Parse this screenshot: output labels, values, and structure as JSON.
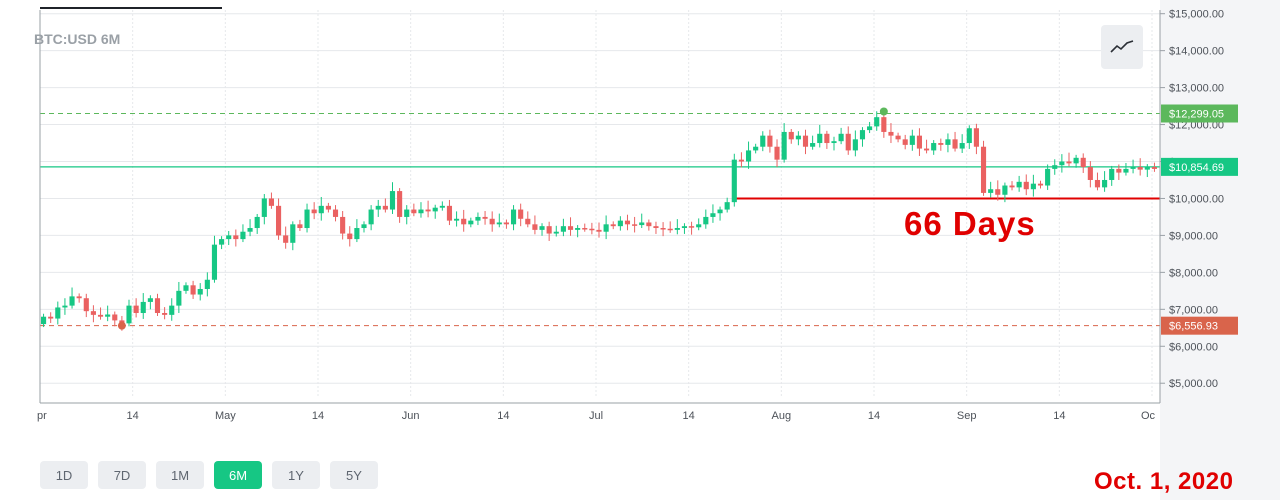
{
  "header": {
    "symbol_title": "BTC:USD 6M"
  },
  "toolbar": {
    "chart_type_icon": "line-chart-icon"
  },
  "range_buttons": [
    {
      "label": "1D",
      "active": false
    },
    {
      "label": "7D",
      "active": false
    },
    {
      "label": "1M",
      "active": false
    },
    {
      "label": "6M",
      "active": true
    },
    {
      "label": "1Y",
      "active": false
    },
    {
      "label": "5Y",
      "active": false
    }
  ],
  "annotations": {
    "days": "66 Days",
    "date": "Oct. 1, 2020"
  },
  "colors": {
    "up": "#16c784",
    "down": "#ea6161",
    "support_line": "#e00000",
    "current_tag": "#16c784",
    "high_tag": "#5cb85c",
    "low_tag": "#d9644b"
  },
  "chart_data": {
    "type": "candlestick",
    "title": "BTC:USD 6M",
    "y_ticks": [
      "$5,000.00",
      "$6,000.00",
      "$7,000.00",
      "$8,000.00",
      "$9,000.00",
      "$10,000.00",
      "$11,000.00",
      "$12,000.00",
      "$13,000.00",
      "$14,000.00",
      "$15,000.00"
    ],
    "x_ticks": [
      "pr",
      "14",
      "May",
      "14",
      "Jun",
      "14",
      "Jul",
      "14",
      "Aug",
      "14",
      "Sep",
      "14",
      "Oc"
    ],
    "ylim": [
      4600,
      15100
    ],
    "grid": true,
    "price_tags": {
      "high": "$12,299.05",
      "current": "$10,854.69",
      "low": "$6,556.93"
    },
    "levels": {
      "high": 12299.05,
      "current": 10854.69,
      "low": 6556.93,
      "support": 10000
    },
    "candles": [
      [
        6600,
        6800
      ],
      [
        6800,
        6750
      ],
      [
        6750,
        7050
      ],
      [
        7050,
        7100
      ],
      [
        7100,
        7350
      ],
      [
        7350,
        7300
      ],
      [
        7300,
        6950
      ],
      [
        6950,
        6850
      ],
      [
        6850,
        6800
      ],
      [
        6800,
        6860
      ],
      [
        6860,
        6700
      ],
      [
        6700,
        6620
      ],
      [
        6620,
        7100
      ],
      [
        7100,
        6900
      ],
      [
        6900,
        7200
      ],
      [
        7200,
        7300
      ],
      [
        7300,
        6900
      ],
      [
        6900,
        6850
      ],
      [
        6850,
        7100
      ],
      [
        7100,
        7500
      ],
      [
        7500,
        7650
      ],
      [
        7650,
        7400
      ],
      [
        7400,
        7550
      ],
      [
        7550,
        7800
      ],
      [
        7800,
        8750
      ],
      [
        8750,
        8900
      ],
      [
        8900,
        9000
      ],
      [
        9000,
        8900
      ],
      [
        8900,
        9100
      ],
      [
        9100,
        9200
      ],
      [
        9200,
        9500
      ],
      [
        9500,
        10000
      ],
      [
        10000,
        9800
      ],
      [
        9800,
        9000
      ],
      [
        9000,
        8800
      ],
      [
        8800,
        9300
      ],
      [
        9300,
        9200
      ],
      [
        9200,
        9700
      ],
      [
        9700,
        9600
      ],
      [
        9600,
        9800
      ],
      [
        9800,
        9700
      ],
      [
        9700,
        9500
      ],
      [
        9500,
        9050
      ],
      [
        9050,
        8900
      ],
      [
        8900,
        9200
      ],
      [
        9200,
        9300
      ],
      [
        9300,
        9700
      ],
      [
        9700,
        9800
      ],
      [
        9800,
        9700
      ],
      [
        9700,
        10200
      ],
      [
        10200,
        9500
      ],
      [
        9500,
        9700
      ],
      [
        9700,
        9600
      ],
      [
        9600,
        9700
      ],
      [
        9700,
        9650
      ],
      [
        9650,
        9750
      ],
      [
        9750,
        9800
      ],
      [
        9800,
        9400
      ],
      [
        9400,
        9450
      ],
      [
        9450,
        9300
      ],
      [
        9300,
        9400
      ],
      [
        9400,
        9500
      ],
      [
        9500,
        9450
      ],
      [
        9450,
        9300
      ],
      [
        9300,
        9350
      ],
      [
        9350,
        9300
      ],
      [
        9300,
        9700
      ],
      [
        9700,
        9450
      ],
      [
        9450,
        9300
      ],
      [
        9300,
        9150
      ],
      [
        9150,
        9250
      ],
      [
        9250,
        9050
      ],
      [
        9050,
        9100
      ],
      [
        9100,
        9250
      ],
      [
        9250,
        9150
      ],
      [
        9150,
        9200
      ],
      [
        9200,
        9180
      ],
      [
        9180,
        9150
      ],
      [
        9150,
        9100
      ],
      [
        9100,
        9300
      ],
      [
        9300,
        9250
      ],
      [
        9250,
        9400
      ],
      [
        9400,
        9300
      ],
      [
        9300,
        9280
      ],
      [
        9280,
        9350
      ],
      [
        9350,
        9250
      ],
      [
        9250,
        9200
      ],
      [
        9200,
        9180
      ],
      [
        9180,
        9150
      ],
      [
        9150,
        9200
      ],
      [
        9200,
        9250
      ],
      [
        9250,
        9220
      ],
      [
        9220,
        9300
      ],
      [
        9300,
        9500
      ],
      [
        9500,
        9600
      ],
      [
        9600,
        9700
      ],
      [
        9700,
        9900
      ],
      [
        9900,
        11050
      ],
      [
        11050,
        11000
      ],
      [
        11000,
        11300
      ],
      [
        11300,
        11400
      ],
      [
        11400,
        11700
      ],
      [
        11700,
        11400
      ],
      [
        11400,
        11050
      ],
      [
        11050,
        11800
      ],
      [
        11800,
        11600
      ],
      [
        11600,
        11700
      ],
      [
        11700,
        11400
      ],
      [
        11400,
        11500
      ],
      [
        11500,
        11750
      ],
      [
        11750,
        11500
      ],
      [
        11500,
        11550
      ],
      [
        11550,
        11750
      ],
      [
        11750,
        11300
      ],
      [
        11300,
        11600
      ],
      [
        11600,
        11850
      ],
      [
        11850,
        11950
      ],
      [
        11950,
        12200
      ],
      [
        12200,
        11800
      ],
      [
        11800,
        11700
      ],
      [
        11700,
        11600
      ],
      [
        11600,
        11450
      ],
      [
        11450,
        11700
      ],
      [
        11700,
        11350
      ],
      [
        11350,
        11300
      ],
      [
        11300,
        11500
      ],
      [
        11500,
        11450
      ],
      [
        11450,
        11600
      ],
      [
        11600,
        11350
      ],
      [
        11350,
        11500
      ],
      [
        11500,
        11900
      ],
      [
        11900,
        11400
      ],
      [
        11400,
        10150
      ],
      [
        10150,
        10250
      ],
      [
        10250,
        10100
      ],
      [
        10100,
        10350
      ],
      [
        10350,
        10300
      ],
      [
        10300,
        10450
      ],
      [
        10450,
        10250
      ],
      [
        10250,
        10400
      ],
      [
        10400,
        10350
      ],
      [
        10350,
        10800
      ],
      [
        10800,
        10900
      ],
      [
        10900,
        11000
      ],
      [
        11000,
        10950
      ],
      [
        10950,
        11100
      ],
      [
        11100,
        10850
      ],
      [
        10850,
        10500
      ],
      [
        10500,
        10300
      ],
      [
        10300,
        10500
      ],
      [
        10500,
        10800
      ],
      [
        10800,
        10700
      ],
      [
        10700,
        10800
      ],
      [
        10800,
        10850
      ],
      [
        10850,
        10780
      ],
      [
        10780,
        10850
      ],
      [
        10850,
        10800
      ]
    ]
  }
}
